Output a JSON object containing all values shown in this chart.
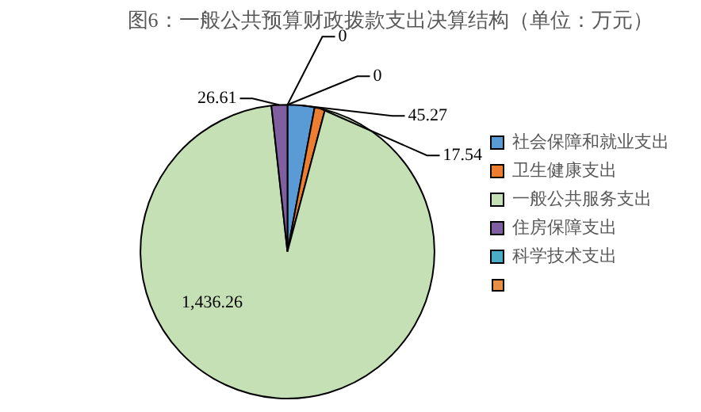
{
  "chart_data": {
    "type": "pie",
    "title": "图6：一般公共预算财政拨款支出决算结构（单位：万元）",
    "categories": [
      "社会保障和就业支出",
      "卫生健康支出",
      "一般公共服务支出",
      "住房保障支出",
      "科学技术支出",
      null
    ],
    "values": [
      45.27,
      17.54,
      1436.26,
      26.61,
      0,
      0
    ],
    "colors": [
      "#5b9bd5",
      "#ed7d31",
      "#c5e0b4",
      "#7f5f9f",
      "#4bacc6",
      "#e98f44"
    ],
    "value_labels": [
      "45.27",
      "17.54",
      "1,436.26",
      "26.61",
      "0",
      "0"
    ],
    "legend": "right"
  }
}
